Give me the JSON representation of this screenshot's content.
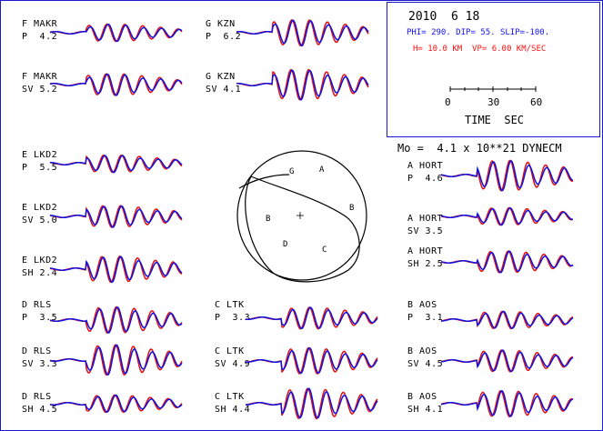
{
  "header": {
    "date": "2010  6 18",
    "params": "PHI= 290. DIP= 55. SLIP=-100.",
    "depth": "H= 10.0 KM  VP= 6.00 KM/SEC",
    "moment": "Mo =  4.1 x 10**21 DYNECM"
  },
  "timescale": {
    "ticks": [
      "0",
      "30",
      "60"
    ],
    "label": "TIME  SEC"
  },
  "beachball": {
    "stations": [
      "G",
      "A",
      "B",
      "B",
      "D",
      "C"
    ]
  },
  "colors": {
    "observed": "#e01010",
    "synthetic": "#1010e0",
    "frame": "#1a1acc",
    "params": "#1010ff",
    "depth": "#ff1010"
  },
  "stations": [
    {
      "station": "F MAKR",
      "phase": "P",
      "amp": "4.2"
    },
    {
      "station": "F MAKR",
      "phase": "SV",
      "amp": "5.2"
    },
    {
      "station": "G KZN",
      "phase": "P",
      "amp": "6.2"
    },
    {
      "station": "G KZN",
      "phase": "SV",
      "amp": "4.1"
    },
    {
      "station": "E LKD2",
      "phase": "P",
      "amp": "5.5"
    },
    {
      "station": "E LKD2",
      "phase": "SV",
      "amp": "5.0"
    },
    {
      "station": "E LKD2",
      "phase": "SH",
      "amp": "2.4"
    },
    {
      "station": "A HORT",
      "phase": "P",
      "amp": "4.6"
    },
    {
      "station": "A HORT",
      "phase": "SV",
      "amp": "3.5"
    },
    {
      "station": "A HORT",
      "phase": "SH",
      "amp": "2.5"
    },
    {
      "station": "D RLS",
      "phase": "P",
      "amp": "3.5"
    },
    {
      "station": "D RLS",
      "phase": "SV",
      "amp": "3.3"
    },
    {
      "station": "D RLS",
      "phase": "SH",
      "amp": "4.5"
    },
    {
      "station": "C LTK",
      "phase": "P",
      "amp": "3.3"
    },
    {
      "station": "C LTK",
      "phase": "SV",
      "amp": "4.9"
    },
    {
      "station": "C LTK",
      "phase": "SH",
      "amp": "4.4"
    },
    {
      "station": "B AOS",
      "phase": "P",
      "amp": "3.1"
    },
    {
      "station": "B AOS",
      "phase": "SV",
      "amp": "4.5"
    },
    {
      "station": "B AOS",
      "phase": "SH",
      "amp": "4.1"
    }
  ]
}
